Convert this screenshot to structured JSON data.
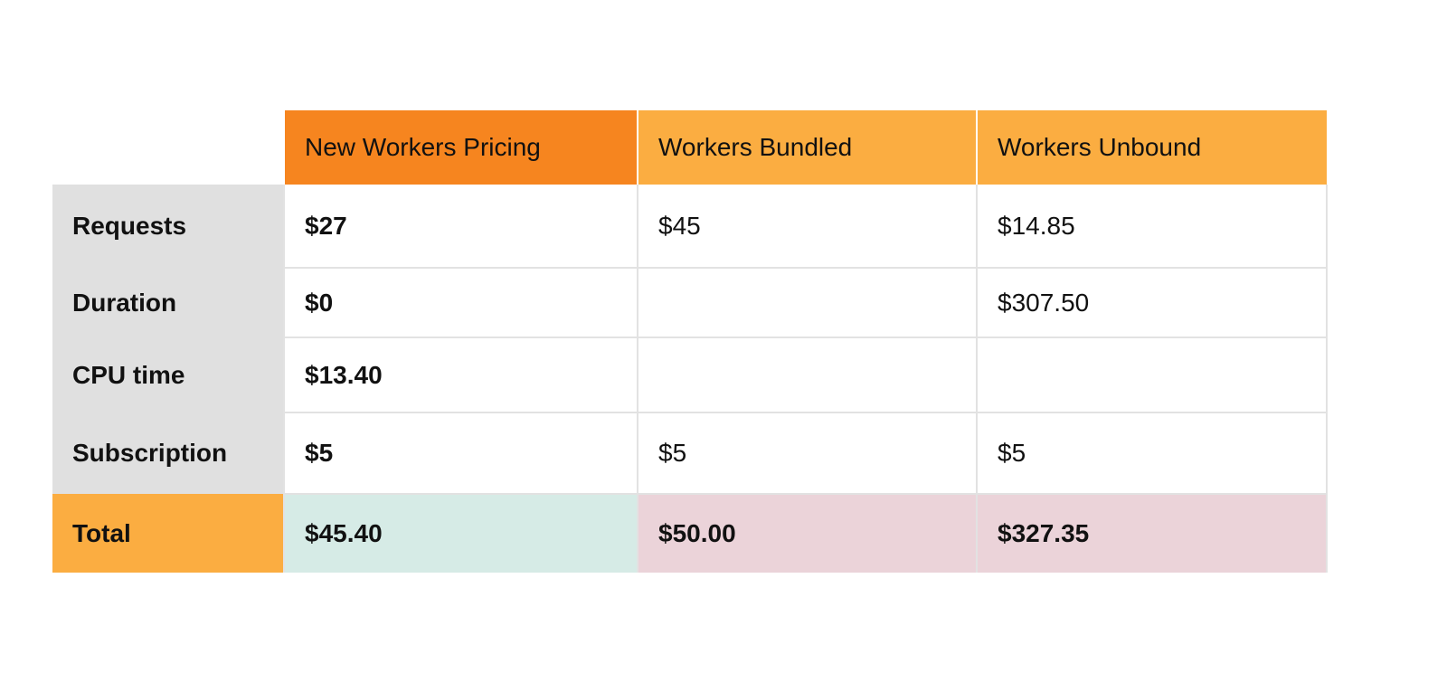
{
  "table": {
    "columns": [
      "New Workers Pricing",
      "Workers Bundled",
      "Workers Unbound"
    ],
    "rows": [
      {
        "label": "Requests",
        "values": [
          "$27",
          "$45",
          "$14.85"
        ]
      },
      {
        "label": "Duration",
        "values": [
          "$0",
          "",
          "$307.50"
        ]
      },
      {
        "label": "CPU time",
        "values": [
          "$13.40",
          "",
          ""
        ]
      },
      {
        "label": "Subscription",
        "values": [
          "$5",
          "$5",
          "$5"
        ]
      }
    ],
    "total": {
      "label": "Total",
      "values": [
        "$45.40",
        "$50.00",
        "$327.35"
      ]
    }
  },
  "colors": {
    "primary_header": "#f6851f",
    "secondary_header": "#fbad41",
    "row_label_bg": "#e0e0e0",
    "total_good_bg": "#d6ebe6",
    "total_good_text": "#1f9e7e",
    "total_bad_bg": "#ebd3d9",
    "total_bad_text": "#a10f45"
  }
}
